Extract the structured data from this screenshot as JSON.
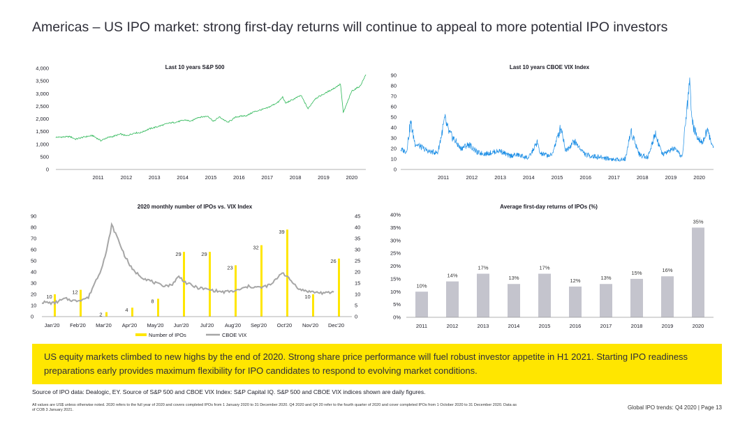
{
  "page": {
    "title": "Americas – US IPO market: strong first-day returns will continue to appeal to more potential IPO investors",
    "banner": "US equity markets climbed to new highs by the end of 2020. Strong share price performance will fuel robust investor appetite in H1 2021. Starting IPO readiness preparations early provides maximum flexibility for IPO candidates to respond to evolving market conditions.",
    "source": "Source of IPO data: Dealogic, EY. Source of S&P 500 and CBOE VIX Index: S&P Capital IQ. S&P 500 and CBOE VIX indices shown are daily figures.",
    "notes": "All values are US$ unless otherwise noted. 2020 refers to the full year of 2020 and covers completed IPOs from 1 January 2020 to 31 December 2020. Q4 2020 and Q4 20 refer to the fourth quarter of 2020 and cover completed IPOs from 1 October 2020 to 31 December 2020. Data as of COB 3 January 2021.",
    "footer": "Global IPO trends: Q4 2020  |  Page 13",
    "colors": {
      "sp500": "#2db757",
      "vix": "#188ce5",
      "ipo_bar": "#ffe600",
      "vix_line": "#a6a6a6",
      "returns_bar": "#c4c4cd",
      "banner": "#ffe600"
    }
  },
  "chart_data": [
    {
      "id": "sp500",
      "type": "line",
      "title": "Last 10 years S&P 500",
      "x_labels": [
        "2011",
        "2012",
        "2013",
        "2014",
        "2015",
        "2016",
        "2017",
        "2018",
        "2019",
        "2020"
      ],
      "y_ticks": [
        "0",
        "500",
        "1,000",
        "1,500",
        "2,000",
        "2,500",
        "3,000",
        "3,500",
        "4,000"
      ],
      "ylim": [
        0,
        4000
      ],
      "xlim": [
        2010.0,
        2021.0
      ],
      "series": [
        {
          "name": "S&P 500",
          "points": [
            [
              2010.0,
              1270
            ],
            [
              2010.5,
              1300
            ],
            [
              2010.7,
              1200
            ],
            [
              2011.0,
              1285
            ],
            [
              2011.3,
              1340
            ],
            [
              2011.6,
              1140
            ],
            [
              2011.8,
              1250
            ],
            [
              2012.0,
              1300
            ],
            [
              2012.3,
              1400
            ],
            [
              2012.5,
              1330
            ],
            [
              2012.8,
              1450
            ],
            [
              2013.0,
              1450
            ],
            [
              2013.3,
              1600
            ],
            [
              2013.6,
              1690
            ],
            [
              2014.0,
              1830
            ],
            [
              2014.3,
              1880
            ],
            [
              2014.6,
              1960
            ],
            [
              2014.8,
              1900
            ],
            [
              2015.0,
              2050
            ],
            [
              2015.4,
              2110
            ],
            [
              2015.6,
              1900
            ],
            [
              2015.8,
              2080
            ],
            [
              2016.1,
              1860
            ],
            [
              2016.4,
              2080
            ],
            [
              2016.8,
              2140
            ],
            [
              2017.0,
              2270
            ],
            [
              2017.5,
              2430
            ],
            [
              2017.9,
              2670
            ],
            [
              2018.05,
              2870
            ],
            [
              2018.15,
              2620
            ],
            [
              2018.7,
              2930
            ],
            [
              2018.95,
              2400
            ],
            [
              2019.2,
              2800
            ],
            [
              2019.5,
              2980
            ],
            [
              2019.9,
              3230
            ],
            [
              2020.1,
              3380
            ],
            [
              2020.2,
              2240
            ],
            [
              2020.5,
              3100
            ],
            [
              2020.8,
              3300
            ],
            [
              2021.0,
              3750
            ]
          ]
        }
      ]
    },
    {
      "id": "vix",
      "type": "line",
      "title": "Last 10 years CBOE VIX Index",
      "x_labels": [
        "2011",
        "2012",
        "2013",
        "2014",
        "2015",
        "2016",
        "2017",
        "2018",
        "2019",
        "2020"
      ],
      "y_ticks": [
        "0",
        "10",
        "20",
        "30",
        "40",
        "50",
        "60",
        "70",
        "80",
        "90"
      ],
      "ylim": [
        0,
        90
      ],
      "xlim": [
        2010.0,
        2021.0
      ],
      "series": [
        {
          "name": "CBOE VIX",
          "points": [
            [
              2010.0,
              19
            ],
            [
              2010.2,
              17
            ],
            [
              2010.35,
              45
            ],
            [
              2010.5,
              25
            ],
            [
              2010.8,
              20
            ],
            [
              2011.0,
              17
            ],
            [
              2011.3,
              16
            ],
            [
              2011.55,
              48
            ],
            [
              2011.7,
              35
            ],
            [
              2011.9,
              28
            ],
            [
              2012.1,
              20
            ],
            [
              2012.4,
              24
            ],
            [
              2012.7,
              16
            ],
            [
              2013.0,
              15
            ],
            [
              2013.5,
              18
            ],
            [
              2013.8,
              13
            ],
            [
              2014.1,
              14
            ],
            [
              2014.5,
              11
            ],
            [
              2014.8,
              26
            ],
            [
              2014.9,
              15
            ],
            [
              2015.3,
              13
            ],
            [
              2015.64,
              41
            ],
            [
              2015.8,
              18
            ],
            [
              2016.1,
              27
            ],
            [
              2016.5,
              14
            ],
            [
              2016.9,
              12
            ],
            [
              2017.2,
              11
            ],
            [
              2017.6,
              9
            ],
            [
              2017.9,
              10
            ],
            [
              2018.1,
              37
            ],
            [
              2018.4,
              14
            ],
            [
              2018.7,
              12
            ],
            [
              2018.95,
              35
            ],
            [
              2019.2,
              14
            ],
            [
              2019.6,
              20
            ],
            [
              2019.9,
              12
            ],
            [
              2020.15,
              82
            ],
            [
              2020.3,
              38
            ],
            [
              2020.6,
              26
            ],
            [
              2020.8,
              38
            ],
            [
              2020.95,
              22
            ],
            [
              2021.0,
              22
            ]
          ]
        }
      ]
    },
    {
      "id": "ipo_vix",
      "type": "bar",
      "title": "2020 monthly number of IPOs vs. VIX Index",
      "categories": [
        "Jan'20",
        "Feb'20",
        "Mar'20",
        "Apr'20",
        "May'20",
        "Jun'20",
        "Jul'20",
        "Aug'20",
        "Sep'20",
        "Oct'20",
        "Nov'20",
        "Dec'20"
      ],
      "y_left_ticks": [
        "0",
        "10",
        "20",
        "30",
        "40",
        "50",
        "60",
        "70",
        "80",
        "90"
      ],
      "y_right_ticks": [
        "0",
        "5",
        "10",
        "15",
        "20",
        "25",
        "30",
        "35",
        "40",
        "45"
      ],
      "ylim_left": [
        0,
        90
      ],
      "ylim_right": [
        0,
        45
      ],
      "bar_series": {
        "name": "Number of IPOs",
        "values": [
          10,
          12,
          2,
          4,
          8,
          29,
          29,
          23,
          32,
          39,
          10,
          26
        ]
      },
      "line_series": {
        "name": "CBOE VIX",
        "points": [
          [
            0.0,
            13
          ],
          [
            0.45,
            12
          ],
          [
            0.9,
            16
          ],
          [
            1.3,
            14
          ],
          [
            1.8,
            17
          ],
          [
            2.0,
            28
          ],
          [
            2.25,
            40
          ],
          [
            2.5,
            58
          ],
          [
            2.7,
            82
          ],
          [
            2.9,
            72
          ],
          [
            3.2,
            55
          ],
          [
            3.5,
            42
          ],
          [
            3.9,
            35
          ],
          [
            4.2,
            32
          ],
          [
            4.6,
            28
          ],
          [
            5.0,
            28
          ],
          [
            5.3,
            36
          ],
          [
            5.6,
            30
          ],
          [
            6.0,
            26
          ],
          [
            6.5,
            24
          ],
          [
            7.0,
            22
          ],
          [
            7.5,
            23
          ],
          [
            8.0,
            27
          ],
          [
            8.5,
            26
          ],
          [
            8.9,
            29
          ],
          [
            9.3,
            40
          ],
          [
            9.6,
            33
          ],
          [
            10.0,
            24
          ],
          [
            10.5,
            22
          ],
          [
            11.0,
            21
          ],
          [
            11.3,
            22
          ]
        ]
      },
      "legend": [
        "Number of IPOs",
        "CBOE VIX"
      ]
    },
    {
      "id": "returns",
      "type": "bar",
      "title": "Average first-day returns of IPOs (%)",
      "categories": [
        "2011",
        "2012",
        "2013",
        "2014",
        "2015",
        "2016",
        "2017",
        "2018",
        "2019",
        "2020"
      ],
      "values": [
        10,
        14,
        17,
        13,
        17,
        12,
        13,
        15,
        16,
        35
      ],
      "value_labels": [
        "10%",
        "14%",
        "17%",
        "13%",
        "17%",
        "12%",
        "13%",
        "15%",
        "16%",
        "35%"
      ],
      "y_ticks": [
        "0%",
        "5%",
        "10%",
        "15%",
        "20%",
        "25%",
        "30%",
        "35%",
        "40%"
      ],
      "ylim": [
        0,
        40
      ]
    }
  ]
}
